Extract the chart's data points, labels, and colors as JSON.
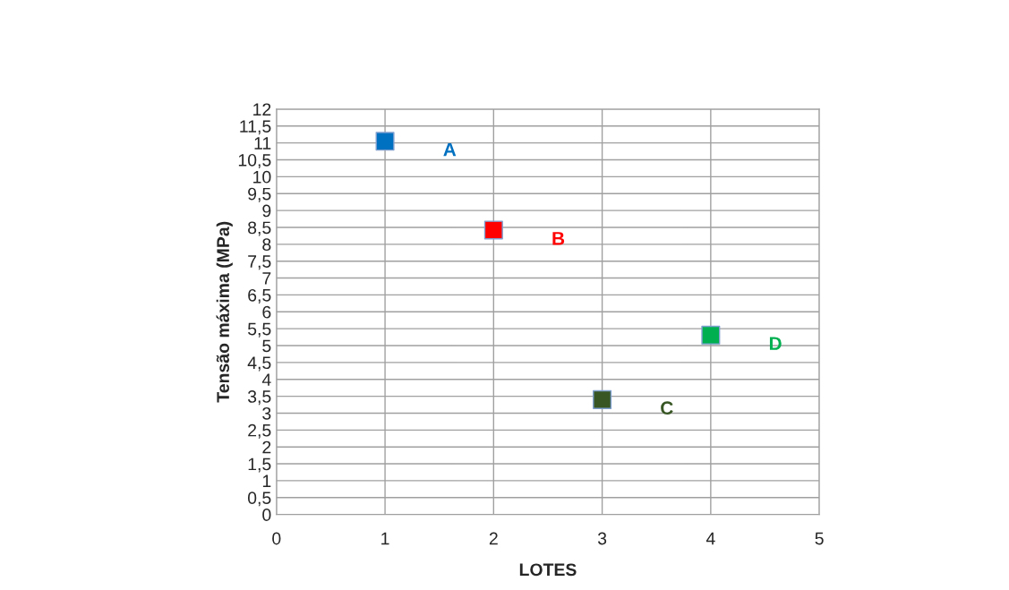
{
  "chart_data": {
    "type": "scatter",
    "xlabel": "LOTES",
    "ylabel": "Tensão máxima (MPa)",
    "series": [
      {
        "name": "A",
        "color": "#0070c0",
        "x": [
          1
        ],
        "values": [
          11.05
        ]
      },
      {
        "name": "B",
        "color": "#ff0000",
        "x": [
          2
        ],
        "values": [
          8.42
        ]
      },
      {
        "name": "C",
        "color": "#375623",
        "x": [
          3
        ],
        "values": [
          3.4
        ]
      },
      {
        "name": "D",
        "color": "#00b050",
        "x": [
          4
        ],
        "values": [
          5.31
        ]
      }
    ],
    "xlim": [
      0,
      5
    ],
    "xticks": [
      0,
      1,
      2,
      3,
      4,
      5
    ],
    "ylim": [
      0,
      12
    ],
    "yticks": [
      0,
      {
        "value": 0.5,
        "label": "0,5"
      },
      1,
      {
        "value": 1.5,
        "label": "1,5"
      },
      2,
      {
        "value": 2.5,
        "label": "2,5"
      },
      3,
      {
        "value": 3.5,
        "label": "3,5"
      },
      4,
      {
        "value": 4.5,
        "label": "4,5"
      },
      5,
      {
        "value": 5.5,
        "label": "5,5"
      },
      6,
      {
        "value": 6.5,
        "label": "6,5"
      },
      7,
      {
        "value": 7.5,
        "label": "7,5"
      },
      8,
      {
        "value": 8.5,
        "label": "8,5"
      },
      9,
      {
        "value": 9.5,
        "label": "9,5"
      },
      10,
      {
        "value": 10.5,
        "label": "10,5"
      },
      11,
      {
        "value": 11.5,
        "label": "11,5"
      },
      12
    ],
    "grid": true,
    "marker": "square"
  }
}
